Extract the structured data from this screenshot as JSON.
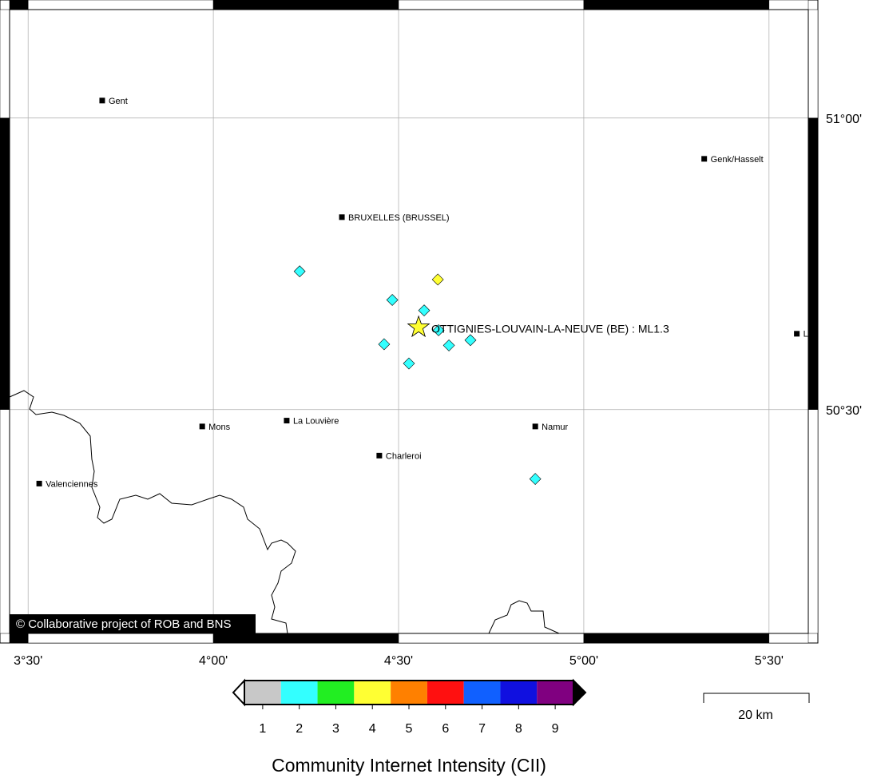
{
  "map": {
    "lonlim": [
      3.45,
      5.606
    ],
    "latlim": [
      50.116,
      51.186
    ],
    "lonticks": [
      {
        "value": 3.5,
        "label": "3°30'"
      },
      {
        "value": 4.0,
        "label": "4°00'"
      },
      {
        "value": 4.5,
        "label": "4°30'"
      },
      {
        "value": 5.0,
        "label": "5°00'"
      },
      {
        "value": 5.5,
        "label": "5°30'"
      }
    ],
    "latticks": [
      {
        "value": 51.0,
        "label": "51°00'"
      },
      {
        "value": 50.5,
        "label": "50°30'"
      }
    ],
    "cities": [
      {
        "name": "Gent",
        "lon": 3.7,
        "lat": 51.03
      },
      {
        "name": "Genk/Hasselt",
        "lon": 5.325,
        "lat": 50.93
      },
      {
        "name": "BRUXELLES (BRUSSEL)",
        "lon": 4.347,
        "lat": 50.83
      },
      {
        "name": "L",
        "lon": 5.575,
        "lat": 50.63
      },
      {
        "name": "Mons",
        "lon": 3.97,
        "lat": 50.471
      },
      {
        "name": "La Louvière",
        "lon": 4.198,
        "lat": 50.481
      },
      {
        "name": "Namur",
        "lon": 4.869,
        "lat": 50.471
      },
      {
        "name": "Charleroi",
        "lon": 4.448,
        "lat": 50.421
      },
      {
        "name": "Valenciennes",
        "lon": 3.53,
        "lat": 50.373
      }
    ],
    "reports": [
      {
        "lon": 4.233,
        "lat": 50.737,
        "intensity": 2
      },
      {
        "lon": 4.606,
        "lat": 50.723,
        "intensity": 4
      },
      {
        "lon": 4.483,
        "lat": 50.688,
        "intensity": 2
      },
      {
        "lon": 4.569,
        "lat": 50.67,
        "intensity": 2
      },
      {
        "lon": 4.608,
        "lat": 50.636,
        "intensity": 2
      },
      {
        "lon": 4.461,
        "lat": 50.612,
        "intensity": 2
      },
      {
        "lon": 4.636,
        "lat": 50.61,
        "intensity": 2
      },
      {
        "lon": 4.694,
        "lat": 50.619,
        "intensity": 2
      },
      {
        "lon": 4.528,
        "lat": 50.579,
        "intensity": 2
      },
      {
        "lon": 4.869,
        "lat": 50.381,
        "intensity": 2
      }
    ],
    "epicenter": {
      "lon": 4.554,
      "lat": 50.641,
      "label": "OTTIGNIES-LOUVAIN-LA-NEUVE (BE) : ML1.3"
    },
    "credit": "© Collaborative project of ROB and BNS"
  },
  "legend": {
    "title": "Community Internet Intensity (CII)",
    "levels": [
      1,
      2,
      3,
      4,
      5,
      6,
      7,
      8,
      9
    ],
    "colors": [
      "#c8c8c8",
      "#33ffff",
      "#22ee22",
      "#ffff33",
      "#ff8000",
      "#ff1010",
      "#1060ff",
      "#1010e0",
      "#800080"
    ]
  },
  "scalebar": {
    "label": "20 km"
  }
}
